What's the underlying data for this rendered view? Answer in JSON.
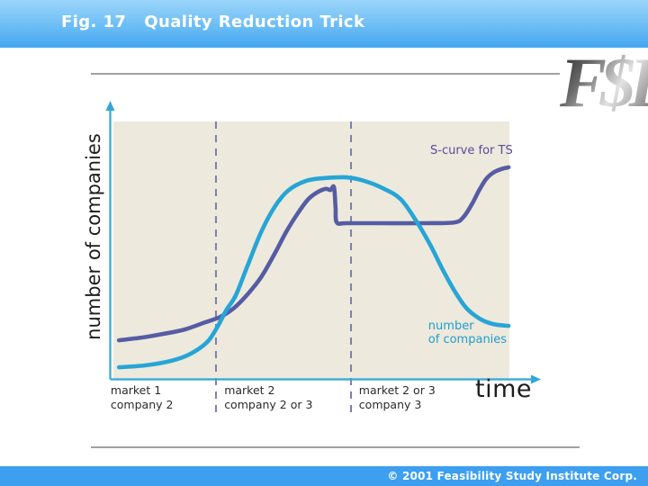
{
  "header": {
    "title": "Fig. 17   Quality Reduction Trick"
  },
  "logo": {
    "text": "F$I"
  },
  "footer": {
    "copyright": "© 2001 Feasibility Study Institute Corp."
  },
  "colors": {
    "header_gradient_top": "#9bd5fa",
    "header_gradient_bottom": "#42a6f0",
    "footer_bg": "#3e9ff0",
    "plot_bg": "#ede9dc",
    "axis": "#2fa9d9",
    "phase_boundary": "#7d80ab",
    "s_curve": "#565ca3",
    "companies_curve": "#26a5d6",
    "text_dark": "#1d1d1d"
  },
  "chart_data": {
    "type": "line",
    "title": "",
    "xlabel": "time",
    "ylabel": "number of companies",
    "x_range": [
      0,
      100
    ],
    "y_range": [
      0,
      100
    ],
    "x_ticks": [],
    "y_ticks": [],
    "grid": false,
    "legend_position": "inline-annotations",
    "series": [
      {
        "name": "S-curve for TS",
        "color": "#565ca3",
        "points": [
          [
            1.4,
            15.0
          ],
          [
            7.3,
            16.1
          ],
          [
            12.7,
            17.5
          ],
          [
            18.0,
            19.2
          ],
          [
            23.2,
            22.0
          ],
          [
            27.0,
            24.1
          ],
          [
            30.5,
            27.6
          ],
          [
            33.9,
            32.9
          ],
          [
            37.3,
            39.5
          ],
          [
            40.7,
            48.6
          ],
          [
            43.6,
            57.0
          ],
          [
            46.4,
            64.0
          ],
          [
            49.1,
            69.6
          ],
          [
            51.4,
            72.4
          ],
          [
            53.6,
            73.8
          ],
          [
            54.8,
            73.4
          ],
          [
            55.7,
            74.5
          ],
          [
            56.1,
            66.8
          ],
          [
            56.4,
            60.8
          ],
          [
            58.9,
            60.5
          ],
          [
            66.8,
            60.5
          ],
          [
            78.2,
            60.5
          ],
          [
            86.1,
            60.8
          ],
          [
            88.4,
            62.9
          ],
          [
            90.5,
            67.8
          ],
          [
            92.3,
            73.1
          ],
          [
            94.1,
            77.6
          ],
          [
            95.9,
            80.1
          ],
          [
            97.9,
            81.5
          ],
          [
            99.8,
            82.2
          ]
        ]
      },
      {
        "name": "number of companies",
        "color": "#26a5d6",
        "points": [
          [
            1.4,
            4.5
          ],
          [
            7.7,
            5.2
          ],
          [
            13.4,
            6.6
          ],
          [
            18.0,
            8.7
          ],
          [
            21.4,
            11.5
          ],
          [
            24.1,
            15.0
          ],
          [
            26.4,
            20.6
          ],
          [
            28.6,
            26.9
          ],
          [
            30.9,
            32.5
          ],
          [
            33.9,
            44.1
          ],
          [
            37.3,
            57.0
          ],
          [
            40.7,
            66.8
          ],
          [
            44.1,
            73.1
          ],
          [
            48.6,
            76.9
          ],
          [
            53.2,
            78.0
          ],
          [
            58.9,
            78.3
          ],
          [
            63.4,
            76.9
          ],
          [
            68.0,
            74.1
          ],
          [
            72.5,
            69.9
          ],
          [
            76.4,
            61.5
          ],
          [
            80.0,
            52.1
          ],
          [
            83.2,
            42.3
          ],
          [
            86.1,
            34.3
          ],
          [
            89.1,
            27.6
          ],
          [
            92.5,
            23.4
          ],
          [
            95.9,
            21.3
          ],
          [
            99.8,
            20.6
          ]
        ]
      }
    ],
    "phase_boundaries": [
      {
        "x": 25.9
      },
      {
        "x": 60.0
      }
    ],
    "phase_labels": [
      {
        "x": -0.7,
        "lines": [
          "market 1",
          "company 2"
        ]
      },
      {
        "x": 28.0,
        "lines": [
          "market 2",
          "company 2 or 3"
        ]
      },
      {
        "x": 62.0,
        "lines": [
          "market 2 or 3",
          "company 3"
        ]
      }
    ],
    "annotations": [
      {
        "text": "S-curve for TS",
        "x": 80.0,
        "y": 91.3,
        "color": "#5b4a9b"
      },
      {
        "text": "number\nof companies",
        "x": 79.5,
        "y": 23.2,
        "color": "#1f9ecf"
      }
    ]
  }
}
